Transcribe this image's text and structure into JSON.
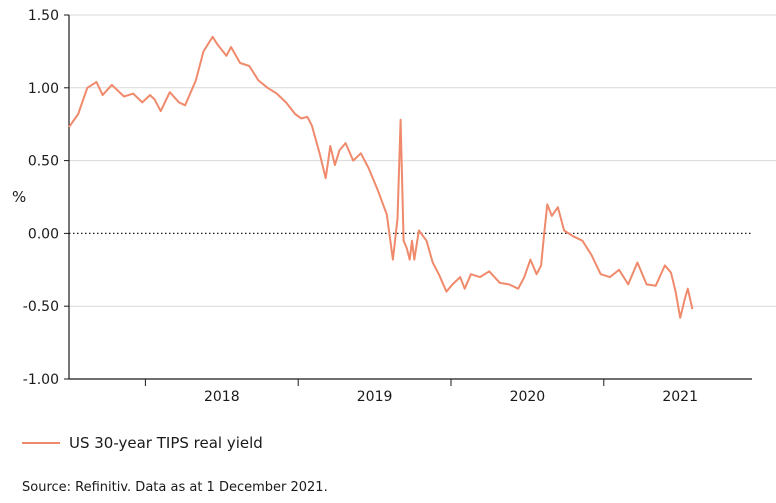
{
  "chart_data": {
    "type": "line",
    "ylabel": "%",
    "ylim": [
      -1.0,
      1.5
    ],
    "xlim": [
      2017.5,
      2021.97
    ],
    "y_ticks": [
      1.5,
      1.0,
      0.5,
      0.0,
      -0.5,
      -1.0
    ],
    "y_tick_labels": [
      "1.50",
      "1.00",
      "0.50",
      "0.00",
      "-0.50",
      "-1.00"
    ],
    "x_year_labels": [
      "2018",
      "2019",
      "2020",
      "2021"
    ],
    "reference_line": {
      "value": 0.0,
      "style": "dotted"
    },
    "grid": "horizontal",
    "line_color": "#f08a6c",
    "series": [
      {
        "name": "US 30-year TIPS real yield",
        "x": [
          2017.5,
          2017.56,
          2017.62,
          2017.68,
          2017.72,
          2017.78,
          2017.86,
          2017.92,
          2017.98,
          2018.03,
          2018.06,
          2018.1,
          2018.16,
          2018.22,
          2018.26,
          2018.33,
          2018.38,
          2018.44,
          2018.47,
          2018.53,
          2018.56,
          2018.62,
          2018.68,
          2018.74,
          2018.8,
          2018.86,
          2018.92,
          2018.98,
          2019.02,
          2019.06,
          2019.09,
          2019.14,
          2019.18,
          2019.21,
          2019.24,
          2019.27,
          2019.31,
          2019.36,
          2019.41,
          2019.46,
          2019.52,
          2019.58,
          2019.62,
          2019.65,
          2019.67,
          2019.69,
          2019.71,
          2019.73,
          2019.745,
          2019.76,
          2019.79,
          2019.84,
          2019.88,
          2019.92,
          2019.97,
          2020.01,
          2020.06,
          2020.09,
          2020.13,
          2020.19,
          2020.25,
          2020.32,
          2020.38,
          2020.44,
          2020.48,
          2020.52,
          2020.56,
          2020.59,
          2020.61,
          2020.63,
          2020.66,
          2020.7,
          2020.74,
          2020.8,
          2020.86,
          2020.92,
          2020.98,
          2021.04,
          2021.1,
          2021.16,
          2021.22,
          2021.28,
          2021.34,
          2021.4,
          2021.44,
          2021.47,
          2021.5,
          2021.53,
          2021.55,
          2021.58
        ],
        "y": [
          0.73,
          0.82,
          1.0,
          1.04,
          0.95,
          1.02,
          0.94,
          0.96,
          0.9,
          0.95,
          0.92,
          0.84,
          0.97,
          0.9,
          0.88,
          1.05,
          1.25,
          1.35,
          1.3,
          1.22,
          1.28,
          1.17,
          1.15,
          1.05,
          1.0,
          0.96,
          0.9,
          0.82,
          0.79,
          0.8,
          0.74,
          0.55,
          0.38,
          0.6,
          0.47,
          0.57,
          0.62,
          0.5,
          0.55,
          0.45,
          0.3,
          0.13,
          -0.18,
          0.1,
          0.78,
          -0.05,
          -0.1,
          -0.18,
          -0.05,
          -0.18,
          0.02,
          -0.05,
          -0.2,
          -0.28,
          -0.4,
          -0.35,
          -0.3,
          -0.38,
          -0.28,
          -0.3,
          -0.26,
          -0.34,
          -0.35,
          -0.38,
          -0.3,
          -0.18,
          -0.28,
          -0.22,
          0.0,
          0.2,
          0.12,
          0.18,
          0.02,
          -0.02,
          -0.05,
          -0.15,
          -0.28,
          -0.3,
          -0.25,
          -0.35,
          -0.2,
          -0.35,
          -0.36,
          -0.22,
          -0.27,
          -0.4,
          -0.58,
          -0.45,
          -0.38,
          -0.52
        ]
      }
    ]
  },
  "legend": {
    "label": "US 30-year TIPS real yield"
  },
  "source": "Source: Refinitiv. Data as at 1 December 2021."
}
